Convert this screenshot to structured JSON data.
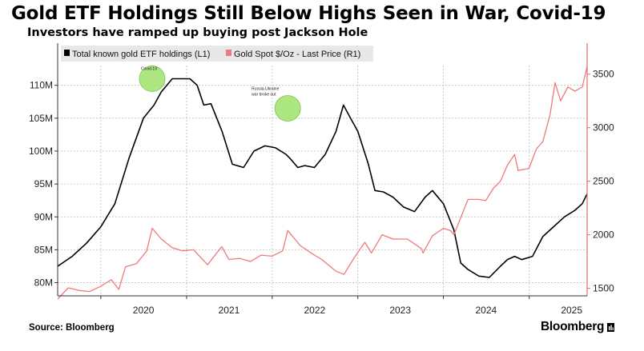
{
  "title": "Gold ETF Holdings Still Below Highs Seen in War, Covid-19",
  "subtitle": "Investors have ramped up buying post Jackson Hole",
  "source": "Source: Bloomberg",
  "brand": "Bloomberg",
  "colors": {
    "etf": "#000000",
    "gold": "#f07a7a",
    "grid": "#bdbdbd",
    "highlight": "#9fe36b",
    "right_axis": "#e46a6a"
  },
  "chart_data": {
    "type": "line",
    "title": "Gold ETF Holdings Still Below Highs Seen in War, Covid-19",
    "subtitle": "Investors have ramped up buying post Jackson Hole",
    "legend_position": "top-left",
    "grid": true,
    "x_axis": {
      "type": "date",
      "range": [
        "2019-07-01",
        "2025-09-05"
      ],
      "tick_labels": [
        "2020",
        "2021",
        "2022",
        "2023",
        "2024",
        "2025"
      ]
    },
    "y_left": {
      "range": [
        78,
        113
      ],
      "unit": "M",
      "ticks": [
        80,
        85,
        90,
        95,
        100,
        105,
        110
      ],
      "tick_labels": [
        "80M",
        "85M",
        "90M",
        "95M",
        "100M",
        "105M",
        "110M"
      ]
    },
    "y_right": {
      "range": [
        1430,
        3580
      ],
      "ticks": [
        1500,
        2000,
        2500,
        3000,
        3500
      ],
      "tick_labels": [
        "1500",
        "2000",
        "2500",
        "3000",
        "3500"
      ]
    },
    "series": [
      {
        "name": "Total known gold ETF holdings (L1)",
        "axis": "left",
        "color": "#000000",
        "x": [
          "2019-07-01",
          "2019-09-01",
          "2019-11-01",
          "2020-01-01",
          "2020-03-01",
          "2020-05-01",
          "2020-07-01",
          "2020-08-15",
          "2020-09-15",
          "2020-11-01",
          "2020-12-01",
          "2021-01-15",
          "2021-02-15",
          "2021-03-15",
          "2021-04-15",
          "2021-06-01",
          "2021-07-15",
          "2021-09-01",
          "2021-10-15",
          "2021-12-01",
          "2022-01-15",
          "2022-03-01",
          "2022-03-20",
          "2022-04-20",
          "2022-05-20",
          "2022-06-30",
          "2022-08-15",
          "2022-09-30",
          "2022-11-01",
          "2022-12-01",
          "2023-01-01",
          "2023-02-15",
          "2023-03-15",
          "2023-04-20",
          "2023-05-31",
          "2023-07-15",
          "2023-08-31",
          "2023-10-15",
          "2023-11-15",
          "2024-01-01",
          "2024-02-15",
          "2024-03-15",
          "2024-04-15",
          "2024-05-31",
          "2024-07-15",
          "2024-08-31",
          "2024-09-30",
          "2024-10-31",
          "2024-11-30",
          "2025-01-15",
          "2025-02-28",
          "2025-04-15",
          "2025-05-31",
          "2025-07-15",
          "2025-08-15",
          "2025-09-05"
        ],
        "y": [
          82.5,
          84,
          86,
          88.5,
          92,
          99,
          105,
          107,
          109,
          111,
          111,
          111,
          110,
          107,
          107.2,
          103,
          98,
          97.5,
          100,
          100.8,
          100.5,
          99.5,
          98.8,
          97.5,
          97.8,
          97.5,
          99.5,
          103,
          107,
          105,
          103,
          98,
          94,
          93.8,
          93,
          91.5,
          90.8,
          93,
          94,
          92,
          88,
          83,
          82,
          81,
          80.8,
          82.5,
          83.5,
          84,
          83.5,
          84,
          87,
          88.5,
          90,
          91,
          92,
          93.5
        ]
      },
      {
        "name": "Gold Spot $/Oz - Last Price (R1)",
        "axis": "right",
        "color": "#f07a7a",
        "x": [
          "2019-07-01",
          "2019-08-15",
          "2019-10-01",
          "2019-11-15",
          "2020-01-01",
          "2020-02-15",
          "2020-03-18",
          "2020-04-15",
          "2020-06-01",
          "2020-07-15",
          "2020-08-07",
          "2020-09-15",
          "2020-10-31",
          "2020-12-15",
          "2021-01-31",
          "2021-03-31",
          "2021-05-31",
          "2021-06-30",
          "2021-08-15",
          "2021-09-30",
          "2021-11-15",
          "2021-12-31",
          "2022-02-15",
          "2022-03-08",
          "2022-04-30",
          "2022-06-15",
          "2022-07-31",
          "2022-09-30",
          "2022-11-03",
          "2022-12-15",
          "2023-01-31",
          "2023-02-28",
          "2023-04-15",
          "2023-05-31",
          "2023-07-31",
          "2023-09-30",
          "2023-10-06",
          "2023-11-15",
          "2023-12-31",
          "2024-01-31",
          "2024-02-15",
          "2024-03-15",
          "2024-04-15",
          "2024-05-31",
          "2024-06-30",
          "2024-07-31",
          "2024-08-31",
          "2024-09-30",
          "2024-10-31",
          "2024-11-15",
          "2024-12-31",
          "2025-01-31",
          "2025-02-28",
          "2025-03-31",
          "2025-04-21",
          "2025-05-15",
          "2025-06-15",
          "2025-07-15",
          "2025-08-15",
          "2025-09-05"
        ],
        "y": [
          1400,
          1505,
          1480,
          1470,
          1520,
          1580,
          1490,
          1700,
          1730,
          1850,
          2060,
          1960,
          1880,
          1850,
          1860,
          1720,
          1890,
          1770,
          1780,
          1750,
          1810,
          1800,
          1850,
          2040,
          1900,
          1830,
          1770,
          1660,
          1630,
          1780,
          1930,
          1830,
          2000,
          1960,
          1960,
          1870,
          1830,
          1990,
          2060,
          2040,
          2000,
          2160,
          2330,
          2330,
          2320,
          2430,
          2500,
          2650,
          2750,
          2600,
          2620,
          2800,
          2870,
          3120,
          3420,
          3250,
          3380,
          3340,
          3380,
          3570
        ]
      }
    ],
    "annotations": [
      {
        "text": "Covid-19",
        "x": "2020-08-07",
        "y": 111
      },
      {
        "text": "Russia-Ukraine war broke out",
        "x": "2022-03-08",
        "y": 106.5
      }
    ]
  }
}
